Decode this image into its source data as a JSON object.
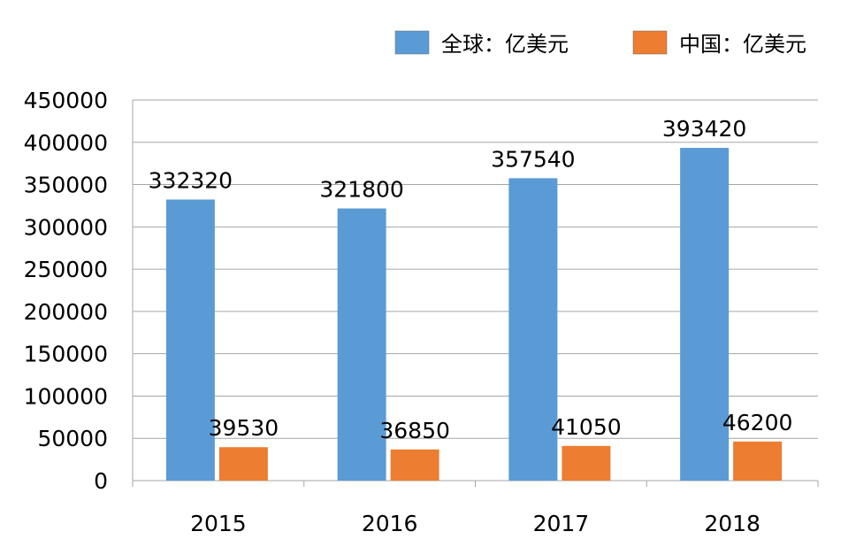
{
  "chart_data": {
    "type": "bar",
    "title": "",
    "xlabel": "",
    "ylabel": "",
    "categories": [
      "2015",
      "2016",
      "2017",
      "2018"
    ],
    "series": [
      {
        "name": "全球：亿美元",
        "color": "#5b9bd5",
        "values": [
          332320,
          321800,
          357540,
          393420
        ]
      },
      {
        "name": "中国：亿美元",
        "color": "#ed7d31",
        "values": [
          39530,
          36850,
          41050,
          46200
        ]
      }
    ],
    "ylim": [
      0,
      450000
    ],
    "yticks": [
      "0",
      "50000",
      "100000",
      "150000",
      "200000",
      "250000",
      "300000",
      "350000",
      "400000",
      "450000"
    ],
    "grid": true,
    "legend_position": "top-right"
  }
}
